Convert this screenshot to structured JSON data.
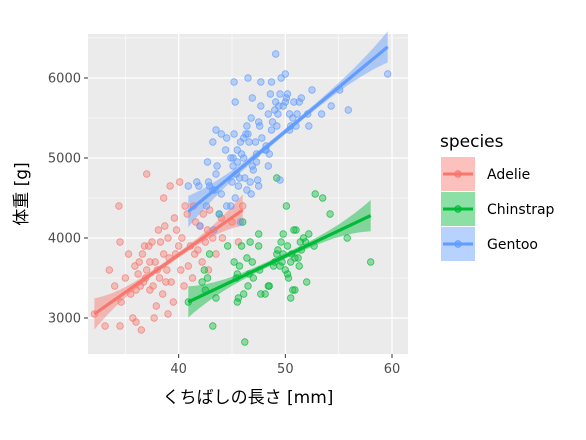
{
  "chart_data": {
    "type": "scatter",
    "xlabel": "くちばしの長さ [mm]",
    "ylabel": "体重 [g]",
    "xlim": [
      31.5,
      61.5
    ],
    "ylim": [
      2550,
      6550
    ],
    "xticks": [
      40,
      50,
      60
    ],
    "yticks": [
      3000,
      4000,
      5000,
      6000
    ],
    "grid": true,
    "legend": {
      "title": "species",
      "position": "right"
    },
    "series": [
      {
        "name": "Adelie",
        "color": "#F8766D",
        "points": [
          [
            32.1,
            3050
          ],
          [
            33.1,
            2900
          ],
          [
            33.5,
            3600
          ],
          [
            34.0,
            3400
          ],
          [
            34.5,
            2900
          ],
          [
            34.6,
            3200
          ],
          [
            34.4,
            4400
          ],
          [
            35.0,
            3500
          ],
          [
            35.3,
            3800
          ],
          [
            35.5,
            3300
          ],
          [
            35.7,
            3000
          ],
          [
            35.9,
            3650
          ],
          [
            36.0,
            3350
          ],
          [
            36.2,
            3550
          ],
          [
            36.3,
            3700
          ],
          [
            36.4,
            3400
          ],
          [
            36.5,
            2850
          ],
          [
            36.6,
            3800
          ],
          [
            36.7,
            3450
          ],
          [
            36.8,
            3900
          ],
          [
            36.9,
            3500
          ],
          [
            37.0,
            3600
          ],
          [
            37.2,
            3900
          ],
          [
            37.3,
            3350
          ],
          [
            37.5,
            3950
          ],
          [
            37.6,
            3400
          ],
          [
            37.7,
            3000
          ],
          [
            37.8,
            3700
          ],
          [
            37.9,
            3150
          ],
          [
            38.0,
            3600
          ],
          [
            38.1,
            4100
          ],
          [
            38.2,
            3500
          ],
          [
            38.3,
            3950
          ],
          [
            38.5,
            3300
          ],
          [
            38.6,
            3800
          ],
          [
            38.7,
            4150
          ],
          [
            38.8,
            3450
          ],
          [
            38.9,
            3600
          ],
          [
            39.0,
            4000
          ],
          [
            39.1,
            3750
          ],
          [
            39.2,
            4650
          ],
          [
            39.3,
            3450
          ],
          [
            39.5,
            3200
          ],
          [
            39.6,
            4250
          ],
          [
            39.7,
            3800
          ],
          [
            39.8,
            4100
          ],
          [
            40.0,
            3900
          ],
          [
            40.2,
            3600
          ],
          [
            40.3,
            4000
          ],
          [
            40.5,
            3400
          ],
          [
            40.6,
            4400
          ],
          [
            40.8,
            4300
          ],
          [
            40.9,
            3650
          ],
          [
            41.1,
            3900
          ],
          [
            41.3,
            3500
          ],
          [
            41.4,
            4400
          ],
          [
            41.5,
            3800
          ],
          [
            41.6,
            4200
          ],
          [
            41.8,
            3850
          ],
          [
            42.0,
            4150
          ],
          [
            42.2,
            3700
          ],
          [
            42.3,
            4300
          ],
          [
            42.5,
            3950
          ],
          [
            42.7,
            4100
          ],
          [
            42.8,
            3600
          ],
          [
            42.9,
            4350
          ],
          [
            43.2,
            4000
          ],
          [
            43.5,
            3800
          ],
          [
            44.0,
            4250
          ],
          [
            44.1,
            4000
          ],
          [
            45.0,
            4200
          ],
          [
            45.6,
            3950
          ],
          [
            46.0,
            4400
          ],
          [
            37.0,
            4800
          ],
          [
            38.6,
            4500
          ],
          [
            36.0,
            2950
          ],
          [
            34.5,
            3950
          ],
          [
            37.3,
            3700
          ],
          [
            40.1,
            4700
          ],
          [
            39.0,
            3050
          ]
        ],
        "fit": {
          "x": [
            32.1,
            46.0
          ],
          "y": [
            3050,
            4350
          ]
        }
      },
      {
        "name": "Chinstrap",
        "color": "#00BA38",
        "points": [
          [
            40.9,
            3200
          ],
          [
            42.4,
            3600
          ],
          [
            42.5,
            3350
          ],
          [
            42.7,
            3500
          ],
          [
            43.2,
            2900
          ],
          [
            43.5,
            3250
          ],
          [
            45.2,
            3700
          ],
          [
            45.4,
            3500
          ],
          [
            45.5,
            3550
          ],
          [
            45.6,
            3250
          ],
          [
            45.7,
            3650
          ],
          [
            46.1,
            3300
          ],
          [
            46.4,
            3750
          ],
          [
            46.5,
            3400
          ],
          [
            46.6,
            3550
          ],
          [
            46.7,
            3950
          ],
          [
            46.9,
            3700
          ],
          [
            47.0,
            3500
          ],
          [
            47.5,
            3900
          ],
          [
            47.6,
            3600
          ],
          [
            48.1,
            3300
          ],
          [
            48.5,
            3400
          ],
          [
            49.0,
            3700
          ],
          [
            49.2,
            3800
          ],
          [
            49.3,
            3850
          ],
          [
            49.5,
            3650
          ],
          [
            49.6,
            3950
          ],
          [
            49.7,
            3700
          ],
          [
            50.0,
            3600
          ],
          [
            50.1,
            4400
          ],
          [
            50.2,
            3900
          ],
          [
            50.3,
            3500
          ],
          [
            50.5,
            3700
          ],
          [
            50.6,
            3800
          ],
          [
            50.7,
            3350
          ],
          [
            50.8,
            4100
          ],
          [
            50.9,
            3750
          ],
          [
            51.0,
            4100
          ],
          [
            51.3,
            3650
          ],
          [
            51.5,
            3850
          ],
          [
            51.7,
            4000
          ],
          [
            51.9,
            3950
          ],
          [
            52.0,
            3450
          ],
          [
            52.2,
            4050
          ],
          [
            52.7,
            3900
          ],
          [
            53.5,
            4500
          ],
          [
            54.2,
            4300
          ],
          [
            55.8,
            4000
          ],
          [
            58.0,
            3700
          ],
          [
            46.0,
            4200
          ],
          [
            49.2,
            4750
          ],
          [
            47.5,
            4050
          ],
          [
            44.6,
            3900
          ],
          [
            48.4,
            3400
          ],
          [
            45.9,
            3900
          ],
          [
            42.9,
            3800
          ],
          [
            51.4,
            3950
          ],
          [
            49.8,
            4050
          ],
          [
            52.8,
            4550
          ],
          [
            50.5,
            3250
          ],
          [
            46.2,
            2700
          ],
          [
            45.5,
            3200
          ],
          [
            47.7,
            3300
          ],
          [
            50.9,
            3350
          ],
          [
            51.2,
            3750
          ],
          [
            49.8,
            3800
          ],
          [
            48.9,
            3650
          ],
          [
            50.2,
            3550
          ],
          [
            43.8,
            4300
          ],
          [
            42.2,
            3450
          ]
        ],
        "fit": {
          "x": [
            40.9,
            58.0
          ],
          "y": [
            3200,
            4280
          ]
        }
      },
      {
        "name": "Gentoo",
        "color": "#619CFF",
        "points": [
          [
            40.9,
            4650
          ],
          [
            41.7,
            4700
          ],
          [
            42.0,
            4150
          ],
          [
            42.6,
            4400
          ],
          [
            42.7,
            4950
          ],
          [
            42.8,
            4700
          ],
          [
            42.9,
            4650
          ],
          [
            43.2,
            4600
          ],
          [
            43.3,
            4100
          ],
          [
            43.4,
            4600
          ],
          [
            43.5,
            4800
          ],
          [
            43.6,
            4900
          ],
          [
            43.8,
            4300
          ],
          [
            44.0,
            4550
          ],
          [
            44.4,
            5100
          ],
          [
            44.5,
            4400
          ],
          [
            44.9,
            5000
          ],
          [
            45.0,
            4700
          ],
          [
            45.1,
            5000
          ],
          [
            45.2,
            5300
          ],
          [
            45.3,
            4500
          ],
          [
            45.4,
            4800
          ],
          [
            45.5,
            5100
          ],
          [
            45.6,
            4650
          ],
          [
            45.7,
            4750
          ],
          [
            45.8,
            4200
          ],
          [
            45.9,
            5050
          ],
          [
            46.1,
            5000
          ],
          [
            46.2,
            4750
          ],
          [
            46.3,
            5300
          ],
          [
            46.4,
            4600
          ],
          [
            46.5,
            5300
          ],
          [
            46.6,
            5200
          ],
          [
            46.7,
            4700
          ],
          [
            46.8,
            5500
          ],
          [
            46.9,
            4900
          ],
          [
            47.2,
            5200
          ],
          [
            47.3,
            4950
          ],
          [
            47.4,
            4725
          ],
          [
            47.5,
            5450
          ],
          [
            47.6,
            5400
          ],
          [
            47.7,
            5650
          ],
          [
            47.8,
            5250
          ],
          [
            48.1,
            5100
          ],
          [
            48.2,
            5150
          ],
          [
            48.4,
            5550
          ],
          [
            48.5,
            5050
          ],
          [
            48.6,
            5800
          ],
          [
            48.7,
            5350
          ],
          [
            48.8,
            5450
          ],
          [
            49.0,
            5600
          ],
          [
            49.1,
            5700
          ],
          [
            49.2,
            5400
          ],
          [
            49.3,
            5550
          ],
          [
            49.4,
            5650
          ],
          [
            49.5,
            5800
          ],
          [
            49.6,
            6000
          ],
          [
            49.8,
            5650
          ],
          [
            50.0,
            5700
          ],
          [
            50.1,
            5750
          ],
          [
            50.2,
            5800
          ],
          [
            50.4,
            5550
          ],
          [
            50.5,
            5400
          ],
          [
            50.7,
            5500
          ],
          [
            50.8,
            5700
          ],
          [
            51.1,
            5550
          ],
          [
            51.3,
            5700
          ],
          [
            51.5,
            5750
          ],
          [
            52.1,
            5550
          ],
          [
            52.2,
            5400
          ],
          [
            52.5,
            5850
          ],
          [
            53.4,
            5550
          ],
          [
            54.3,
            5650
          ],
          [
            55.1,
            5850
          ],
          [
            55.9,
            5600
          ],
          [
            59.6,
            6050
          ],
          [
            49.1,
            6300
          ],
          [
            45.2,
            5950
          ],
          [
            46.5,
            6000
          ],
          [
            43.2,
            5200
          ],
          [
            44.5,
            5250
          ],
          [
            47.5,
            4650
          ],
          [
            48.4,
            4900
          ],
          [
            47.0,
            4850
          ],
          [
            45.1,
            4900
          ],
          [
            44.0,
            5300
          ],
          [
            46.1,
            5250
          ],
          [
            50.0,
            6050
          ],
          [
            48.7,
            5950
          ],
          [
            49.5,
            4725
          ],
          [
            47.3,
            5050
          ],
          [
            46.4,
            5400
          ],
          [
            41.9,
            4650
          ],
          [
            45.5,
            4950
          ],
          [
            44.9,
            4400
          ],
          [
            48.2,
            5100
          ],
          [
            43.5,
            5350
          ],
          [
            46.8,
            4550
          ],
          [
            45.3,
            5700
          ],
          [
            45.8,
            5200
          ],
          [
            50.4,
            5350
          ],
          [
            51.0,
            5400
          ],
          [
            47.7,
            5950
          ],
          [
            46.9,
            5750
          ]
        ],
        "fit": {
          "x": [
            40.9,
            59.6
          ],
          "y": [
            4330,
            6390
          ]
        }
      }
    ]
  }
}
